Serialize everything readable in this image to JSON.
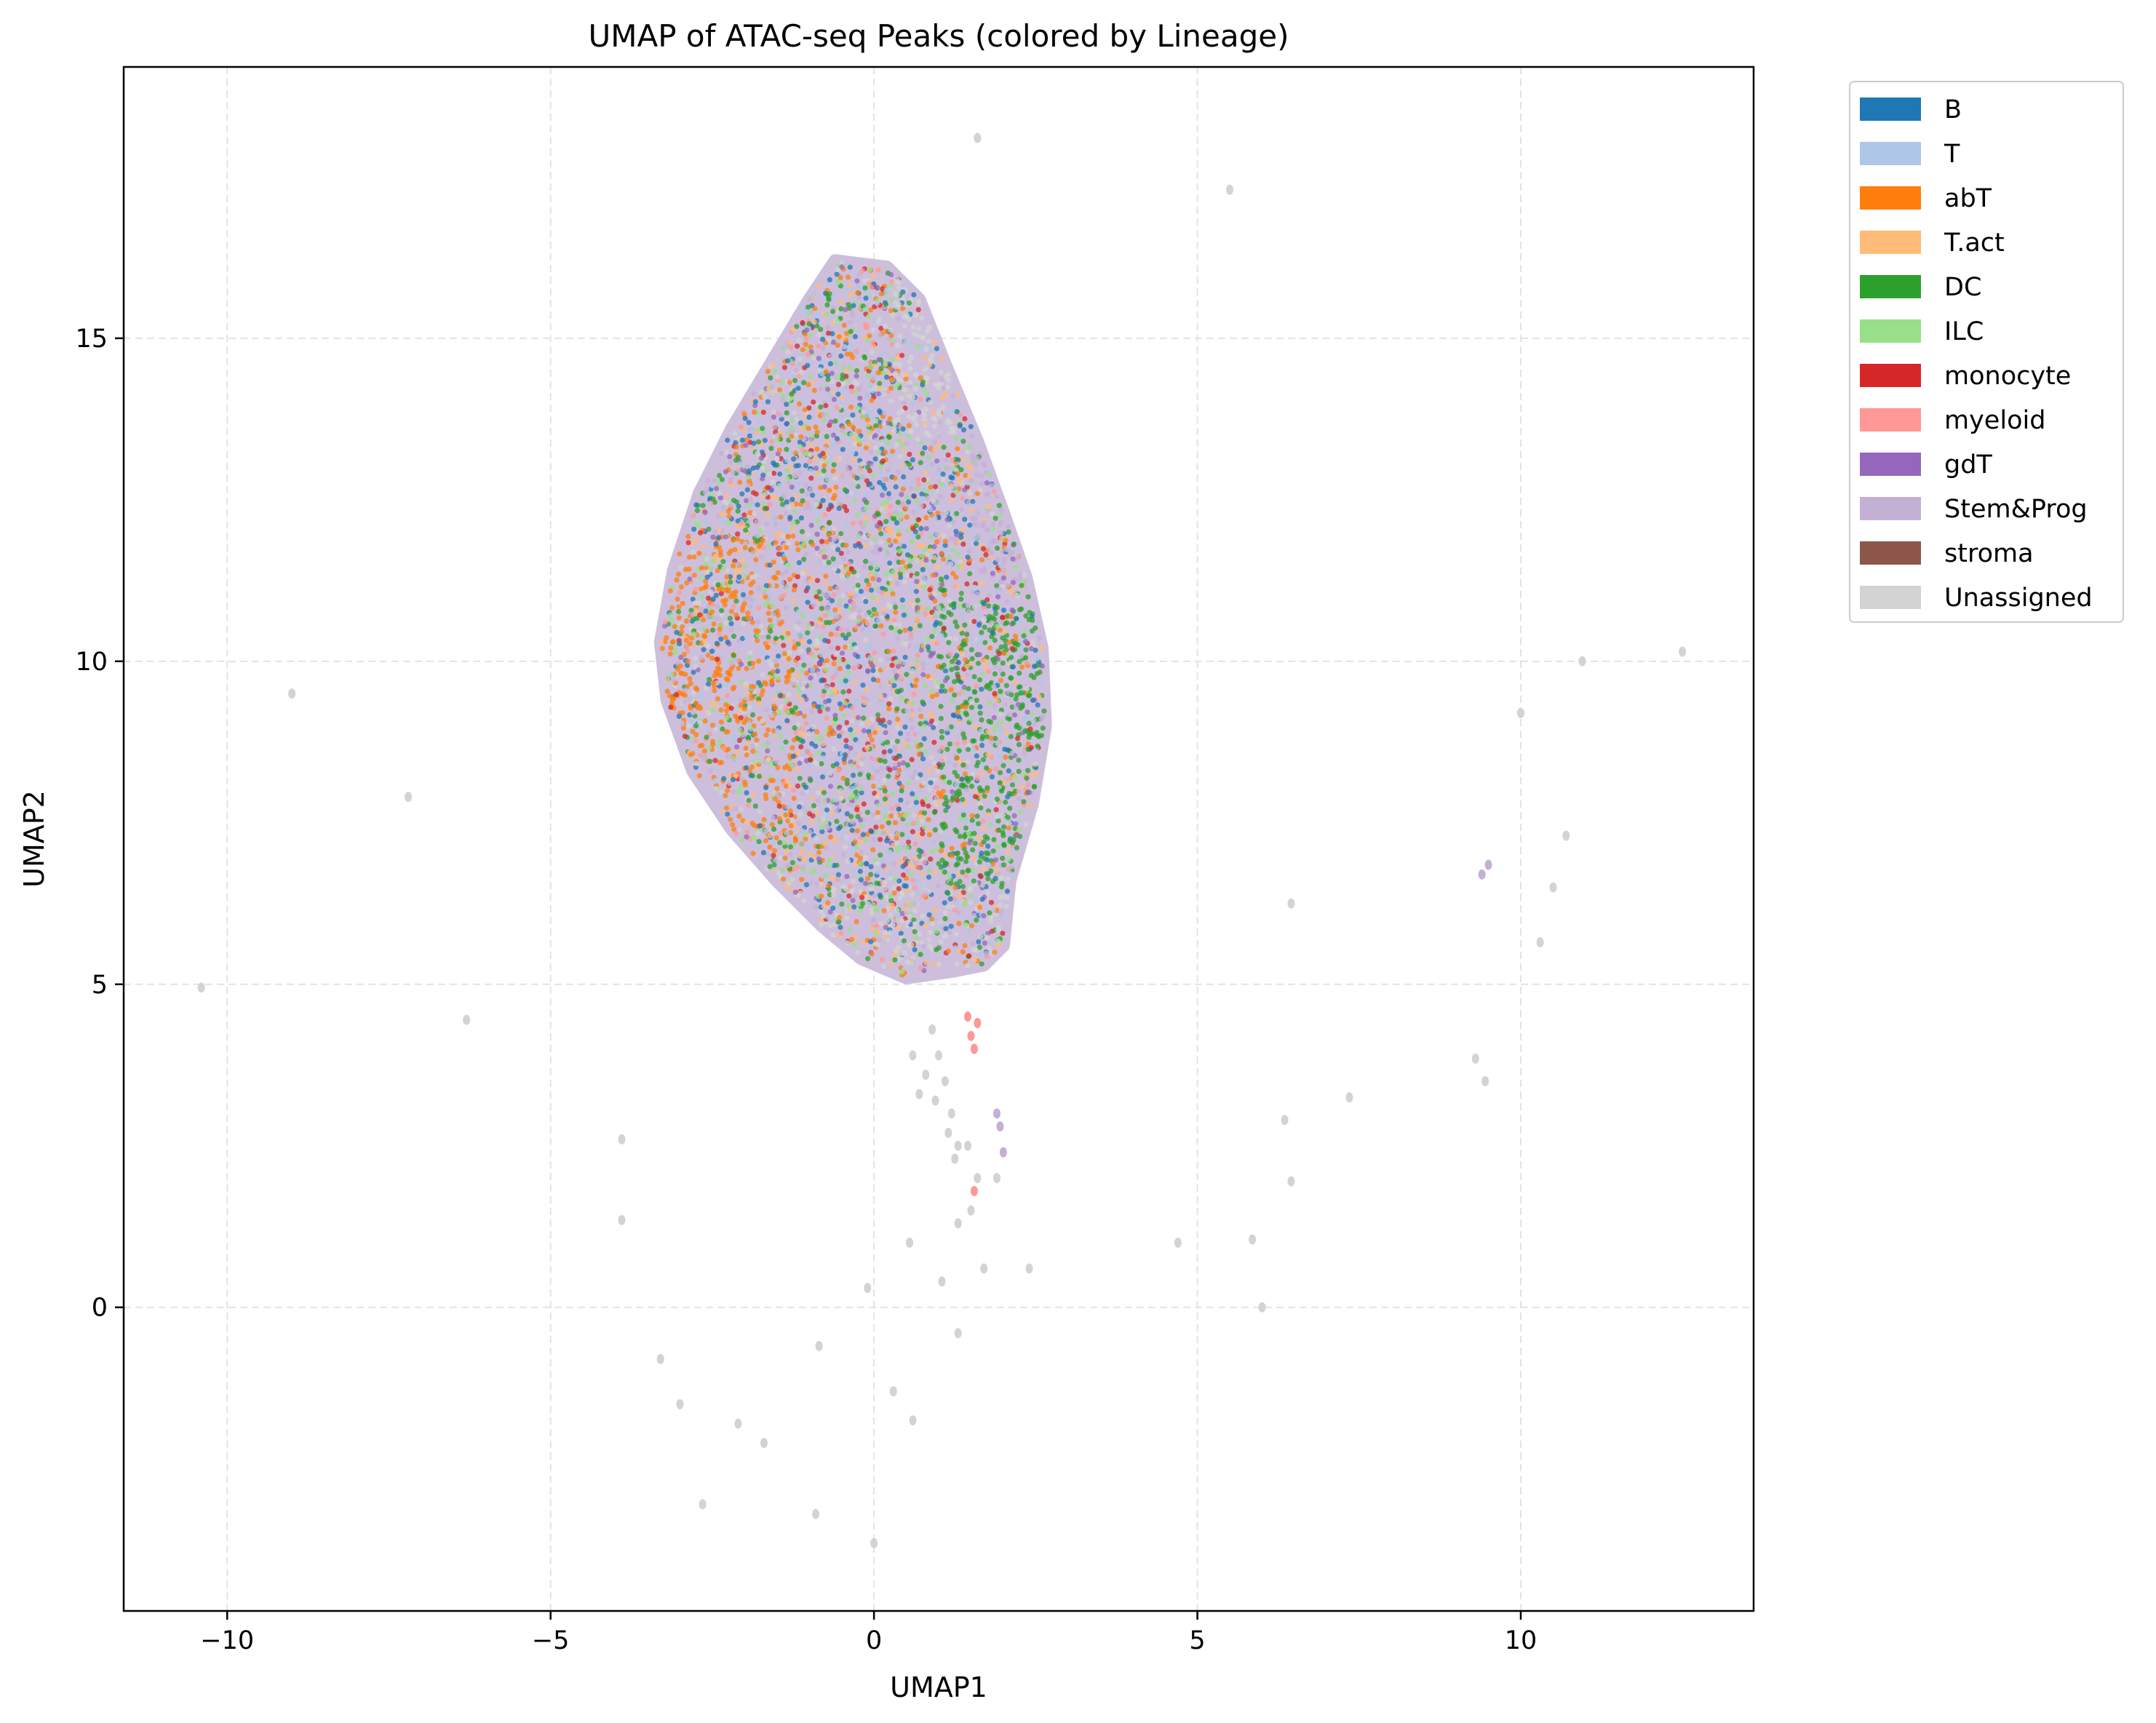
{
  "chart_data": {
    "type": "scatter",
    "title": "UMAP of ATAC-seq Peaks (colored by Lineage)",
    "xlabel": "UMAP1",
    "ylabel": "UMAP2",
    "xlim": [
      -11.6,
      13.6
    ],
    "ylim": [
      -4.7,
      19.2
    ],
    "xticks": [
      -10,
      -5,
      0,
      5,
      10
    ],
    "xtick_labels": [
      "−10",
      "−5",
      "0",
      "5",
      "10"
    ],
    "yticks": [
      0,
      5,
      10,
      15
    ],
    "ytick_labels": [
      "0",
      "5",
      "10",
      "15"
    ],
    "grid": true,
    "legend_position": "outside upper right",
    "series": [
      {
        "name": "B",
        "color": "#1f77b4"
      },
      {
        "name": "T",
        "color": "#aec7e8"
      },
      {
        "name": "abT",
        "color": "#ff7f0e"
      },
      {
        "name": "T.act",
        "color": "#ffbb78"
      },
      {
        "name": "DC",
        "color": "#2ca02c"
      },
      {
        "name": "ILC",
        "color": "#98df8a"
      },
      {
        "name": "monocyte",
        "color": "#d62728"
      },
      {
        "name": "myeloid",
        "color": "#ff9896"
      },
      {
        "name": "gdT",
        "color": "#9467bd"
      },
      {
        "name": "Stem&Prog",
        "color": "#c5b0d5"
      },
      {
        "name": "stroma",
        "color": "#8c564b"
      },
      {
        "name": "Unassigned",
        "color": "#d3d3d3"
      }
    ],
    "main_cluster": {
      "description_points": "dense cloud of peaks spanning UMAP1 -3.2..2.6, UMAP2 5.2..16.2",
      "outline": [
        [
          -0.6,
          16.2
        ],
        [
          0.2,
          16.1
        ],
        [
          0.7,
          15.6
        ],
        [
          1.1,
          14.6
        ],
        [
          1.6,
          13.4
        ],
        [
          2.0,
          12.3
        ],
        [
          2.35,
          11.3
        ],
        [
          2.6,
          10.2
        ],
        [
          2.65,
          9.0
        ],
        [
          2.45,
          7.8
        ],
        [
          2.1,
          6.6
        ],
        [
          2.0,
          5.6
        ],
        [
          1.7,
          5.3
        ],
        [
          1.2,
          5.2
        ],
        [
          0.5,
          5.1
        ],
        [
          -0.2,
          5.4
        ],
        [
          -0.8,
          5.9
        ],
        [
          -1.5,
          6.6
        ],
        [
          -2.2,
          7.4
        ],
        [
          -2.8,
          8.3
        ],
        [
          -3.2,
          9.4
        ],
        [
          -3.3,
          10.3
        ],
        [
          -3.1,
          11.4
        ],
        [
          -2.7,
          12.6
        ],
        [
          -2.2,
          13.6
        ],
        [
          -1.6,
          14.6
        ],
        [
          -1.0,
          15.6
        ]
      ]
    },
    "tail_points": [
      {
        "x": 0.9,
        "y": 4.3,
        "series": "Unassigned"
      },
      {
        "x": 1.0,
        "y": 3.9,
        "series": "Unassigned"
      },
      {
        "x": 0.8,
        "y": 3.6,
        "series": "Unassigned"
      },
      {
        "x": 1.1,
        "y": 3.5,
        "series": "Unassigned"
      },
      {
        "x": 0.95,
        "y": 3.2,
        "series": "Unassigned"
      },
      {
        "x": 1.2,
        "y": 3.0,
        "series": "Unassigned"
      },
      {
        "x": 1.15,
        "y": 2.7,
        "series": "Unassigned"
      },
      {
        "x": 1.3,
        "y": 2.5,
        "series": "Unassigned"
      },
      {
        "x": 1.45,
        "y": 2.5,
        "series": "Unassigned"
      },
      {
        "x": 1.25,
        "y": 2.3,
        "series": "Unassigned"
      },
      {
        "x": 1.6,
        "y": 2.0,
        "series": "Unassigned"
      },
      {
        "x": 1.5,
        "y": 1.5,
        "series": "Unassigned"
      },
      {
        "x": 1.3,
        "y": 1.3,
        "series": "Unassigned"
      },
      {
        "x": 1.9,
        "y": 2.0,
        "series": "Unassigned"
      },
      {
        "x": 0.6,
        "y": 3.9,
        "series": "Unassigned"
      },
      {
        "x": 0.7,
        "y": 3.3,
        "series": "Unassigned"
      },
      {
        "x": 1.5,
        "y": 4.2,
        "series": "myeloid"
      },
      {
        "x": 1.55,
        "y": 4.0,
        "series": "myeloid"
      },
      {
        "x": 1.6,
        "y": 4.4,
        "series": "myeloid"
      },
      {
        "x": 1.45,
        "y": 4.5,
        "series": "myeloid"
      },
      {
        "x": 1.9,
        "y": 3.0,
        "series": "Stem&Prog"
      },
      {
        "x": 1.95,
        "y": 2.8,
        "series": "Stem&Prog"
      },
      {
        "x": 2.0,
        "y": 2.4,
        "series": "Stem&Prog"
      },
      {
        "x": 1.55,
        "y": 1.8,
        "series": "myeloid"
      }
    ],
    "outlier_points": [
      {
        "x": 1.6,
        "y": 18.1,
        "series": "Unassigned"
      },
      {
        "x": 5.5,
        "y": 17.3,
        "series": "Unassigned"
      },
      {
        "x": -9.0,
        "y": 9.5,
        "series": "Unassigned"
      },
      {
        "x": -7.2,
        "y": 7.9,
        "series": "Unassigned"
      },
      {
        "x": -10.4,
        "y": 4.95,
        "series": "Unassigned"
      },
      {
        "x": -6.3,
        "y": 4.45,
        "series": "Unassigned"
      },
      {
        "x": -3.9,
        "y": 2.6,
        "series": "Unassigned"
      },
      {
        "x": -3.9,
        "y": 1.35,
        "series": "Unassigned"
      },
      {
        "x": -3.3,
        "y": -0.8,
        "series": "Unassigned"
      },
      {
        "x": -3.0,
        "y": -1.5,
        "series": "Unassigned"
      },
      {
        "x": -2.1,
        "y": -1.8,
        "series": "Unassigned"
      },
      {
        "x": -1.7,
        "y": -2.1,
        "series": "Unassigned"
      },
      {
        "x": -2.65,
        "y": -3.05,
        "series": "Unassigned"
      },
      {
        "x": -0.9,
        "y": -3.2,
        "series": "Unassigned"
      },
      {
        "x": 0.0,
        "y": -3.65,
        "series": "Unassigned"
      },
      {
        "x": -0.85,
        "y": -0.6,
        "series": "Unassigned"
      },
      {
        "x": -0.1,
        "y": 0.3,
        "series": "Unassigned"
      },
      {
        "x": 0.3,
        "y": -1.3,
        "series": "Unassigned"
      },
      {
        "x": 0.6,
        "y": -1.75,
        "series": "Unassigned"
      },
      {
        "x": 0.55,
        "y": 1.0,
        "series": "Unassigned"
      },
      {
        "x": 1.05,
        "y": 0.4,
        "series": "Unassigned"
      },
      {
        "x": 1.3,
        "y": -0.4,
        "series": "Unassigned"
      },
      {
        "x": 1.7,
        "y": 0.6,
        "series": "Unassigned"
      },
      {
        "x": 2.4,
        "y": 0.6,
        "series": "Unassigned"
      },
      {
        "x": 4.7,
        "y": 1.0,
        "series": "Unassigned"
      },
      {
        "x": 5.85,
        "y": 1.05,
        "series": "Unassigned"
      },
      {
        "x": 6.0,
        "y": 0.0,
        "series": "Unassigned"
      },
      {
        "x": 6.35,
        "y": 2.9,
        "series": "Unassigned"
      },
      {
        "x": 6.45,
        "y": 1.95,
        "series": "Unassigned"
      },
      {
        "x": 7.35,
        "y": 3.25,
        "series": "Unassigned"
      },
      {
        "x": 6.45,
        "y": 6.25,
        "series": "Unassigned"
      },
      {
        "x": 9.3,
        "y": 3.85,
        "series": "Unassigned"
      },
      {
        "x": 9.45,
        "y": 3.5,
        "series": "Unassigned"
      },
      {
        "x": 10.3,
        "y": 5.65,
        "series": "Unassigned"
      },
      {
        "x": 10.5,
        "y": 6.5,
        "series": "Unassigned"
      },
      {
        "x": 10.7,
        "y": 7.3,
        "series": "Unassigned"
      },
      {
        "x": 10.0,
        "y": 9.2,
        "series": "Unassigned"
      },
      {
        "x": 10.95,
        "y": 10.0,
        "series": "Unassigned"
      },
      {
        "x": 12.5,
        "y": 10.15,
        "series": "Unassigned"
      },
      {
        "x": 9.4,
        "y": 6.7,
        "series": "Stem&Prog"
      },
      {
        "x": 9.5,
        "y": 6.85,
        "series": "Stem&Prog"
      }
    ]
  }
}
